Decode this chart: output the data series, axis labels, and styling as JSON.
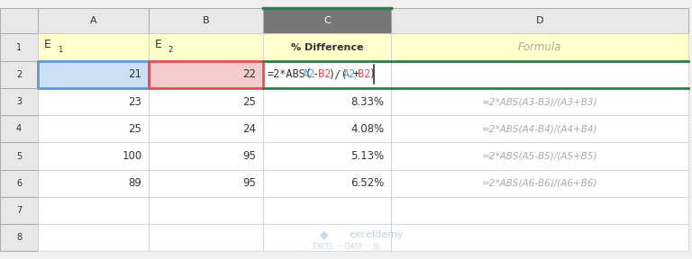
{
  "bg_color": "#f0f0f0",
  "yellow_bg": "#ffffcc",
  "blue_cell_bg": "#cce0f5",
  "pink_cell_bg": "#f5cccc",
  "watermark_color": "#b0cce0",
  "formula_A_color": "#5b9bd5",
  "formula_B_color": "#e05050",
  "col_header_labels": [
    "A",
    "B",
    "C",
    "D"
  ],
  "col_a_data": [
    "21",
    "23",
    "25",
    "100",
    "89",
    "",
    ""
  ],
  "col_b_data": [
    "22",
    "25",
    "24",
    "95",
    "95",
    "",
    ""
  ],
  "col_c_data": [
    "",
    "8.33%",
    "4.08%",
    "5.13%",
    "6.52%",
    "",
    ""
  ],
  "col_d_data": [
    "",
    "=2*ABS(A3-B3)/(A3+B3)",
    "=2*ABS(A4-B4)/(A4+B4)",
    "=2*ABS(A5-B5)/(A5+B5)",
    "=2*ABS(A6-B6)/(A6+B6)",
    "",
    ""
  ],
  "formula_parts": [
    [
      "=2*ABS(",
      "#333333"
    ],
    [
      "A2",
      "#5b9bd5"
    ],
    [
      "-",
      "#333333"
    ],
    [
      "B2",
      "#e05050"
    ],
    [
      ")/(",
      "#333333"
    ],
    [
      "A2",
      "#5b9bd5"
    ],
    [
      "+",
      "#333333"
    ],
    [
      "B2",
      "#e05050"
    ],
    [
      ")",
      "#333333"
    ]
  ]
}
